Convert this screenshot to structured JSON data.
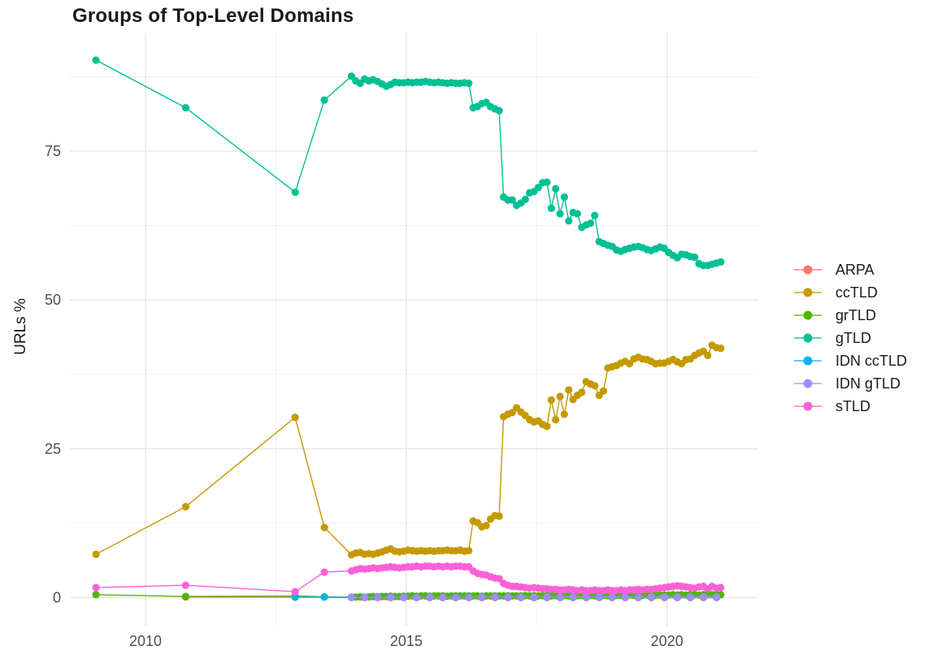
{
  "chart_data": {
    "type": "line",
    "title": "Groups of Top-Level Domains",
    "xlabel": "",
    "ylabel": "URLs %",
    "xlim": [
      2008.55,
      2021.75
    ],
    "ylim": [
      -4.7,
      94.8
    ],
    "x_ticks": [
      2010,
      2015,
      2020
    ],
    "y_ticks": [
      0,
      25,
      50,
      75
    ],
    "x_minor_ticks": [
      2012.5,
      2017.5
    ],
    "y_minor_ticks": [
      12.5,
      37.5,
      62.5,
      87.5
    ],
    "grid": true,
    "legend_position": "right",
    "marker_style": "point-and-line",
    "series": [
      {
        "name": "ARPA",
        "color": "#F8766D",
        "sparse": [
          [
            2010.77,
            0.1
          ],
          [
            2012.87,
            0.08
          ]
        ],
        "dense": {
          "start": 2013.95,
          "step": 0.25,
          "values": [
            0.02,
            0.02,
            0.02,
            0.02,
            0.02,
            0.02,
            0.02,
            0.02,
            0.02,
            0.02,
            0.02,
            0.02,
            0.02,
            0.02,
            0.02,
            0.02,
            0.02,
            0.02,
            0.02,
            0.02,
            0.02,
            0.02,
            0.02,
            0.02,
            0.02,
            0.02,
            0.02,
            0.02,
            0.02
          ]
        }
      },
      {
        "name": "ccTLD",
        "color": "#C49A00",
        "sparse": [
          [
            2009.05,
            7.3
          ],
          [
            2010.77,
            15.3
          ],
          [
            2012.87,
            30.3
          ],
          [
            2013.43,
            11.8
          ]
        ],
        "dense": {
          "start": 2013.95,
          "step": 0.0833,
          "values": [
            7.2,
            7.5,
            7.6,
            7.3,
            7.4,
            7.3,
            7.5,
            7.7,
            8.0,
            8.2,
            7.8,
            7.7,
            7.8,
            8.0,
            7.9,
            7.8,
            7.9,
            7.8,
            7.9,
            7.8,
            7.9,
            7.9,
            8.0,
            7.9,
            7.9,
            8.0,
            7.8,
            7.9,
            12.9,
            12.6,
            11.9,
            12.1,
            13.2,
            13.8,
            13.7,
            30.4,
            30.8,
            31.1,
            31.9,
            31.2,
            30.6,
            29.9,
            29.5,
            29.7,
            29.1,
            28.8,
            33.2,
            29.9,
            33.8,
            30.8,
            34.9,
            33.3,
            34.0,
            34.5,
            36.3,
            35.9,
            35.6,
            34.0,
            34.7,
            38.6,
            38.8,
            39.0,
            39.4,
            39.7,
            39.3,
            40.1,
            40.4,
            40.1,
            40.0,
            39.7,
            39.3,
            39.4,
            39.4,
            39.7,
            40.0,
            39.6,
            39.3,
            40.0,
            40.1,
            40.7,
            41.1,
            41.4,
            40.7,
            42.4,
            42.0,
            41.9
          ]
        }
      },
      {
        "name": "grTLD",
        "color": "#53B400",
        "sparse": [
          [
            2009.05,
            0.5
          ],
          [
            2010.77,
            0.2
          ],
          [
            2012.87,
            0.3
          ],
          [
            2013.43,
            0.15
          ]
        ],
        "dense": {
          "start": 2013.95,
          "step": 0.0833,
          "values": [
            0.1,
            0.1,
            0.15,
            0.1,
            0.15,
            0.2,
            0.15,
            0.2,
            0.2,
            0.25,
            0.2,
            0.2,
            0.25,
            0.25,
            0.3,
            0.25,
            0.3,
            0.3,
            0.25,
            0.3,
            0.3,
            0.3,
            0.25,
            0.3,
            0.3,
            0.3,
            0.3,
            0.3,
            0.3,
            0.3,
            0.25,
            0.3,
            0.3,
            0.3,
            0.3,
            0.3,
            0.3,
            0.3,
            0.3,
            0.3,
            0.35,
            0.3,
            0.35,
            0.3,
            0.35,
            0.35,
            0.3,
            0.35,
            0.35,
            0.35,
            0.3,
            0.35,
            0.35,
            0.4,
            0.35,
            0.4,
            0.35,
            0.4,
            0.4,
            0.35,
            0.4,
            0.4,
            0.4,
            0.4,
            0.45,
            0.4,
            0.45,
            0.4,
            0.45,
            0.45,
            0.4,
            0.45,
            0.45,
            0.45,
            0.5,
            0.45,
            0.5,
            0.45,
            0.5,
            0.5,
            0.45,
            0.5,
            0.5,
            0.5,
            0.5,
            0.5
          ]
        }
      },
      {
        "name": "gTLD",
        "color": "#00C094",
        "sparse": [
          [
            2009.05,
            90.3
          ],
          [
            2010.77,
            82.3
          ],
          [
            2012.87,
            68.1
          ],
          [
            2013.43,
            83.6
          ]
        ],
        "dense": {
          "start": 2013.95,
          "step": 0.0833,
          "values": [
            87.6,
            86.8,
            86.4,
            87.1,
            86.8,
            87.0,
            86.7,
            86.3,
            85.9,
            86.2,
            86.6,
            86.5,
            86.5,
            86.6,
            86.5,
            86.6,
            86.6,
            86.7,
            86.6,
            86.5,
            86.6,
            86.5,
            86.4,
            86.5,
            86.4,
            86.4,
            86.5,
            86.4,
            82.3,
            82.5,
            83.0,
            83.2,
            82.5,
            82.1,
            81.8,
            67.3,
            66.8,
            66.8,
            65.9,
            66.3,
            66.9,
            68.0,
            68.2,
            68.9,
            69.7,
            69.8,
            65.4,
            68.7,
            64.5,
            67.3,
            63.3,
            64.7,
            64.5,
            62.2,
            62.6,
            62.9,
            64.2,
            59.8,
            59.5,
            59.2,
            59.0,
            58.4,
            58.2,
            58.5,
            58.7,
            58.9,
            59.0,
            58.8,
            58.5,
            58.3,
            58.6,
            58.9,
            58.7,
            58.0,
            57.5,
            57.1,
            57.7,
            57.6,
            57.3,
            57.2,
            56.1,
            55.8,
            55.8,
            56.0,
            56.2,
            56.4
          ]
        }
      },
      {
        "name": "IDN ccTLD",
        "color": "#00B6EB",
        "sparse": [
          [
            2012.87,
            0.1
          ],
          [
            2013.43,
            0.1
          ]
        ],
        "dense": {
          "start": 2013.95,
          "step": 0.25,
          "values": [
            0.08,
            0.08,
            0.08,
            0.08,
            0.08,
            0.08,
            0.08,
            0.08,
            0.08,
            0.08,
            0.08,
            0.08,
            0.08,
            0.08,
            0.08,
            0.08,
            0.08,
            0.08,
            0.08,
            0.08,
            0.08,
            0.08,
            0.08,
            0.08,
            0.08,
            0.08,
            0.08,
            0.08,
            0.08
          ]
        }
      },
      {
        "name": "IDN gTLD",
        "color": "#A58AFF",
        "sparse": [],
        "dense": {
          "start": 2013.95,
          "step": 0.25,
          "values": [
            0.02,
            0.02,
            0.02,
            0.02,
            0.02,
            0.02,
            0.02,
            0.02,
            0.02,
            0.02,
            0.12,
            0.12,
            0.12,
            0.12,
            0.12,
            0.12,
            0.12,
            0.12,
            0.12,
            0.12,
            0.12,
            0.12,
            0.12,
            0.12,
            0.12,
            0.12,
            0.12,
            0.12,
            0.12
          ]
        }
      },
      {
        "name": "sTLD",
        "color": "#FB61D7",
        "sparse": [
          [
            2009.05,
            1.7
          ],
          [
            2010.77,
            2.1
          ],
          [
            2012.87,
            1.0
          ],
          [
            2013.43,
            4.3
          ]
        ],
        "dense": {
          "start": 2013.95,
          "step": 0.0833,
          "values": [
            4.5,
            4.7,
            4.9,
            4.8,
            4.9,
            5.0,
            4.9,
            5.0,
            5.1,
            5.2,
            5.1,
            5.0,
            5.1,
            5.2,
            5.2,
            5.3,
            5.2,
            5.3,
            5.3,
            5.2,
            5.3,
            5.2,
            5.3,
            5.2,
            5.3,
            5.3,
            5.2,
            5.2,
            4.5,
            4.1,
            3.9,
            3.8,
            3.5,
            3.3,
            3.2,
            2.4,
            2.1,
            1.9,
            1.9,
            1.8,
            1.7,
            1.6,
            1.7,
            1.6,
            1.5,
            1.5,
            1.4,
            1.4,
            1.3,
            1.3,
            1.4,
            1.3,
            1.2,
            1.3,
            1.2,
            1.2,
            1.3,
            1.2,
            1.2,
            1.3,
            1.2,
            1.2,
            1.3,
            1.2,
            1.3,
            1.3,
            1.4,
            1.3,
            1.4,
            1.4,
            1.5,
            1.6,
            1.7,
            1.8,
            1.9,
            2.0,
            1.9,
            1.8,
            1.7,
            1.6,
            1.8,
            1.9,
            1.5,
            1.9,
            1.6,
            1.7
          ]
        }
      }
    ],
    "style": {
      "grid_major_color": "#e3e3e3",
      "grid_minor_color": "#f0f0f0",
      "tick_label_color": "#4d4d4d",
      "text_color": "#1a1a1a",
      "background": "#ffffff",
      "point_radius": 4.6,
      "line_width": 1.4
    }
  }
}
